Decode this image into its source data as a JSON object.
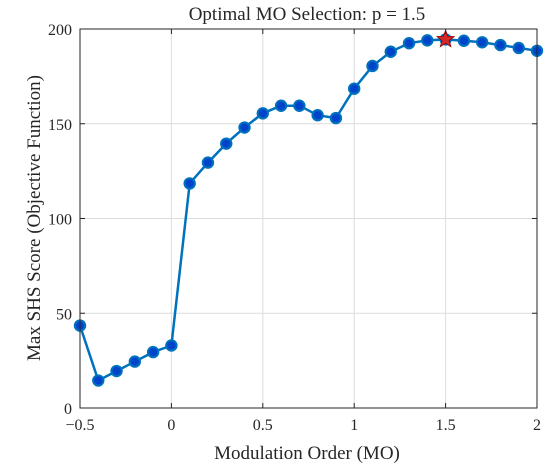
{
  "chart_data": {
    "type": "line",
    "title": "Optimal MO Selection: p = 1.5",
    "xlabel": "Modulation Order (MO)",
    "ylabel": "Max SHS Score (Objective Function)",
    "xlim": [
      -0.5,
      2
    ],
    "ylim": [
      0,
      200
    ],
    "x_ticks": [
      -0.5,
      0,
      0.5,
      1,
      1.5,
      2
    ],
    "x_tick_labels": [
      "−0.5",
      "0",
      "0.5",
      "1",
      "1.5",
      "2"
    ],
    "y_ticks": [
      0,
      50,
      100,
      150,
      200
    ],
    "y_tick_labels": [
      "0",
      "50",
      "100",
      "150",
      "200"
    ],
    "grid": true,
    "series": [
      {
        "x": [
          -0.5,
          -0.4,
          -0.3,
          -0.2,
          -0.1,
          0.0,
          0.1,
          0.2,
          0.3,
          0.4,
          0.5,
          0.6,
          0.7,
          0.8,
          0.9,
          1.0,
          1.1,
          1.2,
          1.3,
          1.4,
          1.5,
          1.6,
          1.7,
          1.8,
          1.9,
          2.0
        ],
        "y": [
          43.5,
          14.5,
          19.5,
          24.5,
          29.5,
          33,
          118.5,
          129.5,
          139.5,
          148,
          155.5,
          159.5,
          159.5,
          154.5,
          153,
          168.5,
          180.5,
          188,
          192.5,
          194,
          194.5,
          193.8,
          193,
          191.5,
          190,
          188.5
        ],
        "color": "#0072BD",
        "marker_color": "#0044CC"
      }
    ],
    "optimum": {
      "x": 1.5,
      "y": 194.5,
      "marker": "star",
      "color": "#D62728"
    }
  }
}
